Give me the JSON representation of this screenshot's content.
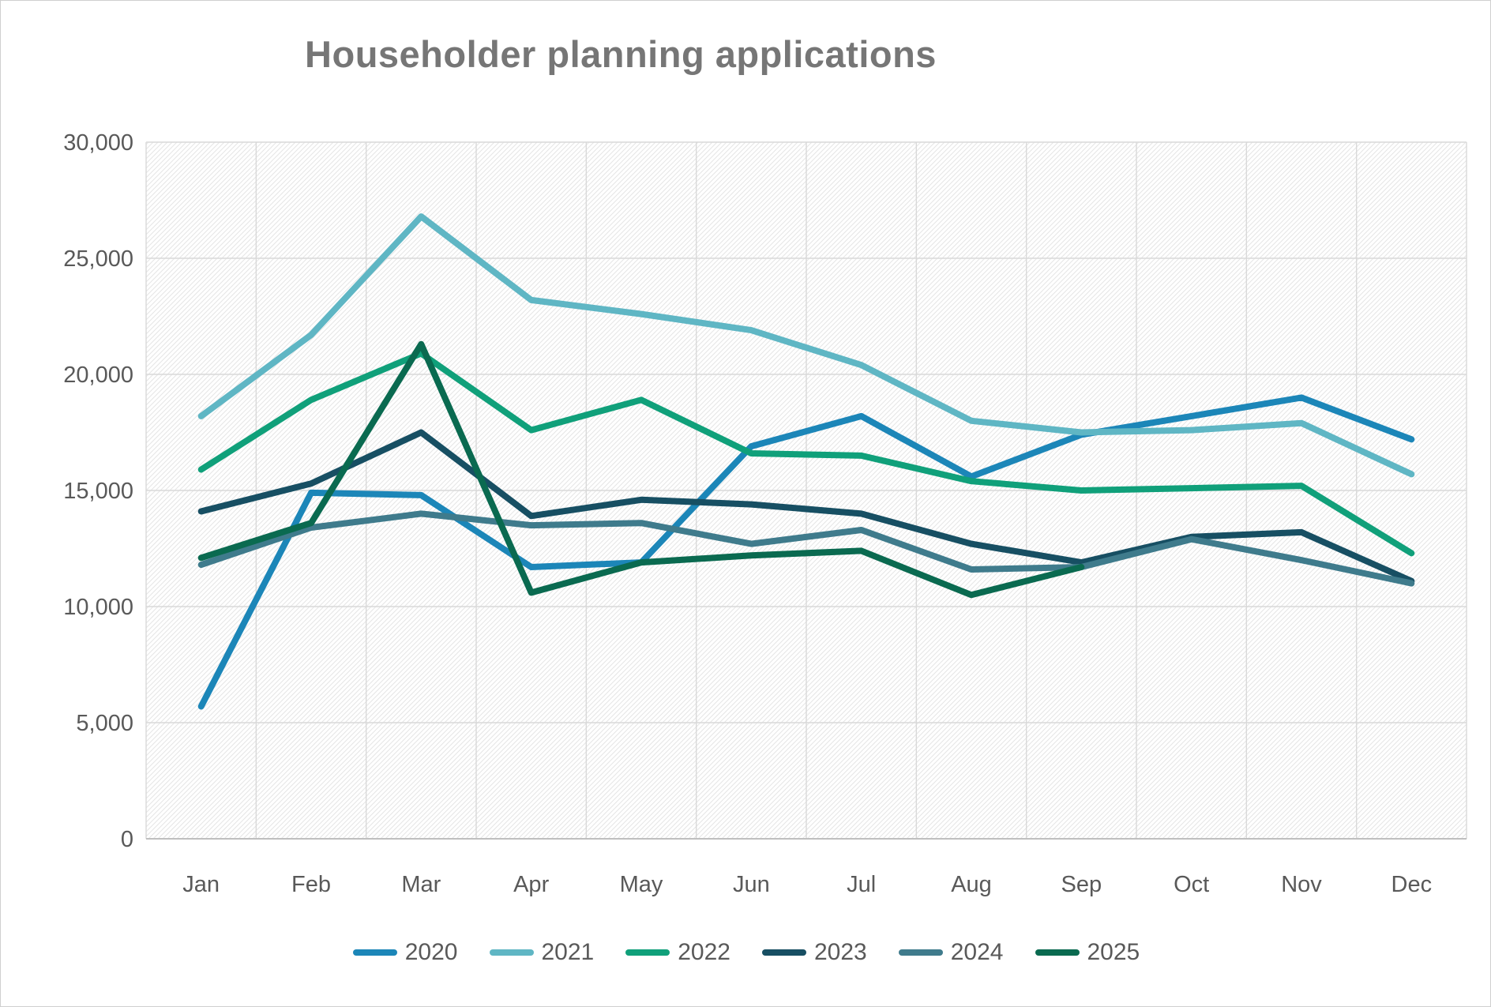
{
  "chart_title": "Householder planning applications",
  "chart_data": {
    "type": "line",
    "title": "Householder planning applications",
    "categories": [
      "Jan",
      "Feb",
      "Mar",
      "Apr",
      "May",
      "Jun",
      "Jul",
      "Aug",
      "Sep",
      "Oct",
      "Nov",
      "Dec"
    ],
    "y_ticks": [
      {
        "value": 0,
        "label": "0"
      },
      {
        "value": 5000,
        "label": "5,000"
      },
      {
        "value": 10000,
        "label": "10,000"
      },
      {
        "value": 15000,
        "label": "15,000"
      },
      {
        "value": 20000,
        "label": "20,000"
      },
      {
        "value": 25000,
        "label": "25,000"
      },
      {
        "value": 30000,
        "label": "30,000"
      }
    ],
    "ylim": [
      0,
      30000
    ],
    "grid": true,
    "legend_position": "bottom",
    "plot_background": "diagonal-hatch",
    "series": [
      {
        "name": "2020",
        "color": "#1C86B8",
        "values": [
          5700,
          14900,
          14800,
          11700,
          11900,
          16900,
          18200,
          15600,
          17400,
          18200,
          19000,
          17200
        ]
      },
      {
        "name": "2021",
        "color": "#5FB6C4",
        "values": [
          18200,
          21700,
          26800,
          23200,
          22600,
          21900,
          20400,
          18000,
          17500,
          17600,
          17900,
          15700
        ]
      },
      {
        "name": "2022",
        "color": "#10A07A",
        "values": [
          15900,
          18900,
          20900,
          17600,
          18900,
          16600,
          16500,
          15400,
          15000,
          15100,
          15200,
          12300
        ]
      },
      {
        "name": "2023",
        "color": "#174F63",
        "values": [
          14100,
          15300,
          17500,
          13900,
          14600,
          14400,
          14000,
          12700,
          11900,
          13000,
          13200,
          11100
        ]
      },
      {
        "name": "2024",
        "color": "#3F7B8C",
        "values": [
          11800,
          13400,
          14000,
          13500,
          13600,
          12700,
          13300,
          11600,
          11700,
          12900,
          12000,
          11000
        ]
      },
      {
        "name": "2025",
        "color": "#0A6A50",
        "values": [
          12100,
          13600,
          21300,
          10600,
          11900,
          12200,
          12400,
          10500,
          11700,
          null,
          null,
          null
        ]
      }
    ],
    "colors": {
      "title_text": "#767676",
      "axis_text": "#595959",
      "gridline": "#d9d9d9",
      "axis_line": "#bfbfbf",
      "hatch": "#e6e6e6"
    }
  }
}
